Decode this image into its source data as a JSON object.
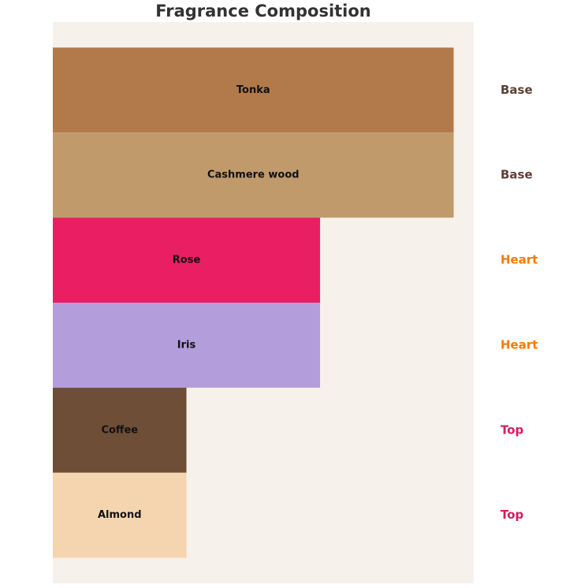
{
  "chart_data": {
    "type": "bar",
    "orientation": "horizontal",
    "title": "Fragrance Composition",
    "categories": [
      "Tonka",
      "Cashmere wood",
      "Rose",
      "Iris",
      "Coffee",
      "Almond"
    ],
    "values": [
      3,
      3,
      2,
      2,
      1,
      1
    ],
    "colors": [
      "#b27a4b",
      "#c19a6b",
      "#e91e63",
      "#b39ddb",
      "#6f4e37",
      "#f5d5b0"
    ],
    "tiers": [
      "Base",
      "Base",
      "Heart",
      "Heart",
      "Top",
      "Top"
    ],
    "tier_colors": {
      "Base": "#5d4037",
      "Heart": "#f57c00",
      "Top": "#d81b60"
    },
    "background": "#f7f1eb",
    "xlim": [
      0,
      3.15
    ],
    "ylim": [
      -0.8,
      5.8
    ]
  }
}
